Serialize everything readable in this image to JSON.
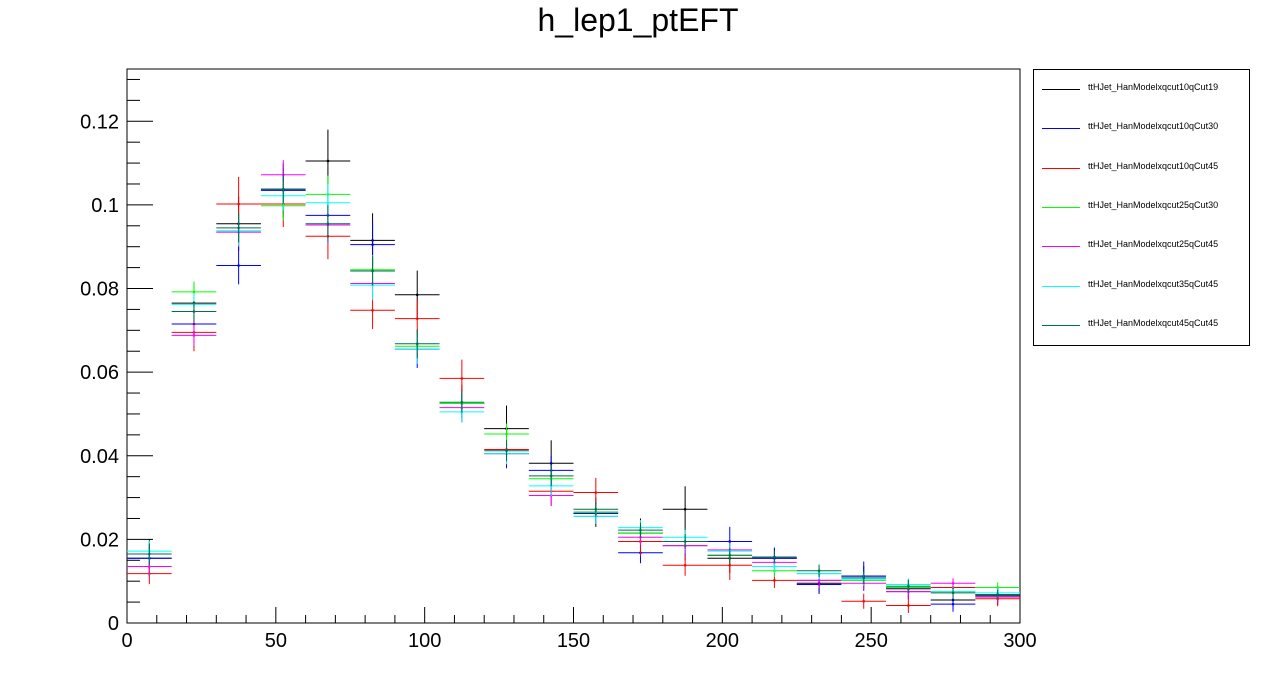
{
  "chart_data": {
    "type": "scatter",
    "title": "h_lep1_ptEFT",
    "xlabel": "",
    "ylabel": "",
    "xlim": [
      0,
      300
    ],
    "ylim": [
      0,
      0.1325
    ],
    "x_ticks": [
      "0",
      "50",
      "100",
      "150",
      "200",
      "250",
      "300"
    ],
    "y_ticks": [
      "0",
      "0.02",
      "0.04",
      "0.06",
      "0.08",
      "0.1",
      "0.12"
    ],
    "bin_width": 15,
    "x": [
      7.5,
      22.5,
      37.5,
      52.5,
      67.5,
      82.5,
      97.5,
      112.5,
      127.5,
      142.5,
      157.5,
      172.5,
      187.5,
      202.5,
      217.5,
      232.5,
      247.5,
      262.5,
      277.5,
      292.5
    ],
    "legend_position": "right",
    "grid": false,
    "series": [
      {
        "name": "ttHJet_HanModelxqcut10qCut19",
        "color": "#000000",
        "values": [
          0.0155,
          0.0765,
          0.0955,
          0.1035,
          0.1105,
          0.0915,
          0.0785,
          0.0525,
          0.0465,
          0.0382,
          0.0265,
          0.0215,
          0.0272,
          0.0155,
          0.0155,
          0.0095,
          0.0112,
          0.0082,
          0.0055,
          0.0065
        ],
        "errors": [
          0.0045,
          0.0045,
          0.0065,
          0.0065,
          0.0075,
          0.0065,
          0.0058,
          0.0045,
          0.0055,
          0.0055,
          0.0035,
          0.0035,
          0.0055,
          0.0035,
          0.0025,
          0.0025,
          0.0025,
          0.0022,
          0.0022,
          0.0022
        ]
      },
      {
        "name": "ttHJet_HanModelxqcut10qCut30",
        "color": "#0000ff",
        "values": [
          0.0155,
          0.0715,
          0.0855,
          0.1035,
          0.0975,
          0.0905,
          0.0655,
          0.0525,
          0.0405,
          0.0365,
          0.0262,
          0.0168,
          0.0185,
          0.0195,
          0.0155,
          0.0092,
          0.0112,
          0.0075,
          0.0045,
          0.0068
        ],
        "errors": [
          0.0035,
          0.0045,
          0.0045,
          0.0055,
          0.0055,
          0.0055,
          0.0045,
          0.0035,
          0.0035,
          0.0035,
          0.0025,
          0.0025,
          0.0035,
          0.0035,
          0.0025,
          0.0022,
          0.0035,
          0.0018,
          0.0018,
          0.0018
        ]
      },
      {
        "name": "ttHJet_HanModelxqcut10qCut45",
        "color": "#ff0000",
        "values": [
          0.0118,
          0.0695,
          0.1002,
          0.1002,
          0.0925,
          0.0748,
          0.0728,
          0.0585,
          0.0415,
          0.0315,
          0.0312,
          0.0195,
          0.0138,
          0.0138,
          0.0102,
          0.0102,
          0.0052,
          0.0042,
          0.0085,
          0.0058
        ],
        "errors": [
          0.0025,
          0.0045,
          0.0065,
          0.0055,
          0.0055,
          0.0045,
          0.0045,
          0.0045,
          0.0035,
          0.0035,
          0.0035,
          0.0035,
          0.0025,
          0.0035,
          0.0018,
          0.0018,
          0.0018,
          0.0018,
          0.0018,
          0.0018
        ]
      },
      {
        "name": "ttHJet_HanModelxqcut25qCut30",
        "color": "#00ff00",
        "values": [
          0.0135,
          0.0792,
          0.0935,
          0.0998,
          0.1025,
          0.0845,
          0.0662,
          0.0525,
          0.0452,
          0.0345,
          0.0265,
          0.0215,
          0.0185,
          0.0162,
          0.0125,
          0.0118,
          0.0102,
          0.0085,
          0.0075,
          0.0085
        ],
        "errors": [
          0.0025,
          0.0025,
          0.0035,
          0.0035,
          0.0045,
          0.0035,
          0.0035,
          0.0025,
          0.0025,
          0.0025,
          0.0018,
          0.0018,
          0.0018,
          0.0018,
          0.0015,
          0.0015,
          0.0015,
          0.0015,
          0.0012,
          0.0012
        ]
      },
      {
        "name": "ttHJet_HanModelxqcut25qCut45",
        "color": "#ff00ff",
        "values": [
          0.0135,
          0.0688,
          0.0935,
          0.1072,
          0.0952,
          0.0812,
          0.0655,
          0.0515,
          0.0405,
          0.0305,
          0.0255,
          0.0205,
          0.0185,
          0.0175,
          0.0145,
          0.0102,
          0.0095,
          0.0075,
          0.0095,
          0.0062
        ],
        "errors": [
          0.0025,
          0.0025,
          0.0035,
          0.0035,
          0.0045,
          0.0035,
          0.0035,
          0.0025,
          0.0025,
          0.0025,
          0.0018,
          0.0018,
          0.0018,
          0.0018,
          0.0015,
          0.0015,
          0.0015,
          0.0015,
          0.0012,
          0.0012
        ]
      },
      {
        "name": "ttHJet_HanModelxqcut35qCut45",
        "color": "#00ffff",
        "values": [
          0.0172,
          0.0762,
          0.0938,
          0.1022,
          0.1005,
          0.0808,
          0.0655,
          0.0505,
          0.0405,
          0.0328,
          0.0255,
          0.0228,
          0.0205,
          0.0172,
          0.0135,
          0.0118,
          0.0105,
          0.0092,
          0.0075,
          0.0072
        ],
        "errors": [
          0.0025,
          0.0025,
          0.0035,
          0.0035,
          0.0045,
          0.0035,
          0.0035,
          0.0025,
          0.0025,
          0.0025,
          0.0018,
          0.0018,
          0.0018,
          0.0018,
          0.0015,
          0.0015,
          0.0015,
          0.0015,
          0.0012,
          0.0012
        ]
      },
      {
        "name": "ttHJet_HanModelxqcut45qCut45",
        "color": "#006f4f",
        "values": [
          0.0165,
          0.0745,
          0.0945,
          0.1038,
          0.0955,
          0.0842,
          0.0668,
          0.0528,
          0.0412,
          0.0352,
          0.0272,
          0.0222,
          0.0195,
          0.0162,
          0.0158,
          0.0125,
          0.0108,
          0.0088,
          0.0072,
          0.0068
        ],
        "errors": [
          0.0025,
          0.0025,
          0.0035,
          0.0035,
          0.0045,
          0.0035,
          0.0035,
          0.0025,
          0.0025,
          0.0025,
          0.0018,
          0.0018,
          0.0018,
          0.0018,
          0.0015,
          0.0015,
          0.0015,
          0.0015,
          0.0012,
          0.0012
        ]
      }
    ]
  }
}
